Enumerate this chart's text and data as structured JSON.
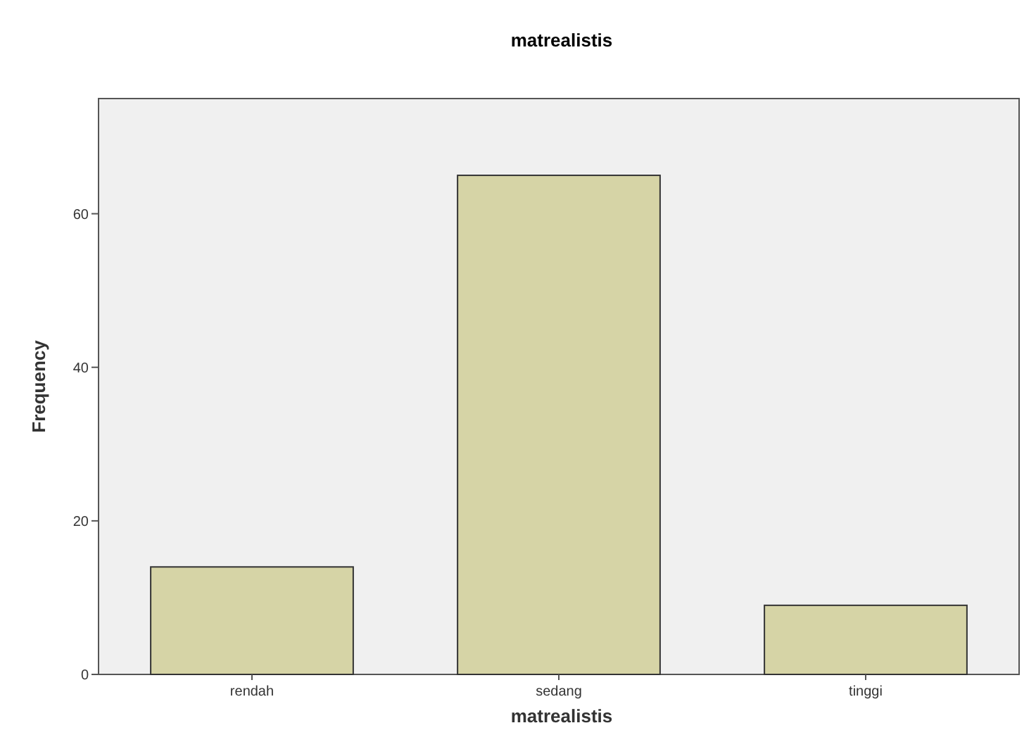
{
  "chart_data": {
    "type": "bar",
    "title": "matrealistis",
    "xlabel": "matrealistis",
    "ylabel": "Frequency",
    "categories": [
      "rendah",
      "sedang",
      "tinggi"
    ],
    "values": [
      14,
      65,
      9
    ],
    "color": "#d6d4a6",
    "ylim": [
      0,
      75
    ],
    "yticks": [
      0,
      20,
      40,
      60
    ],
    "grid": false
  }
}
